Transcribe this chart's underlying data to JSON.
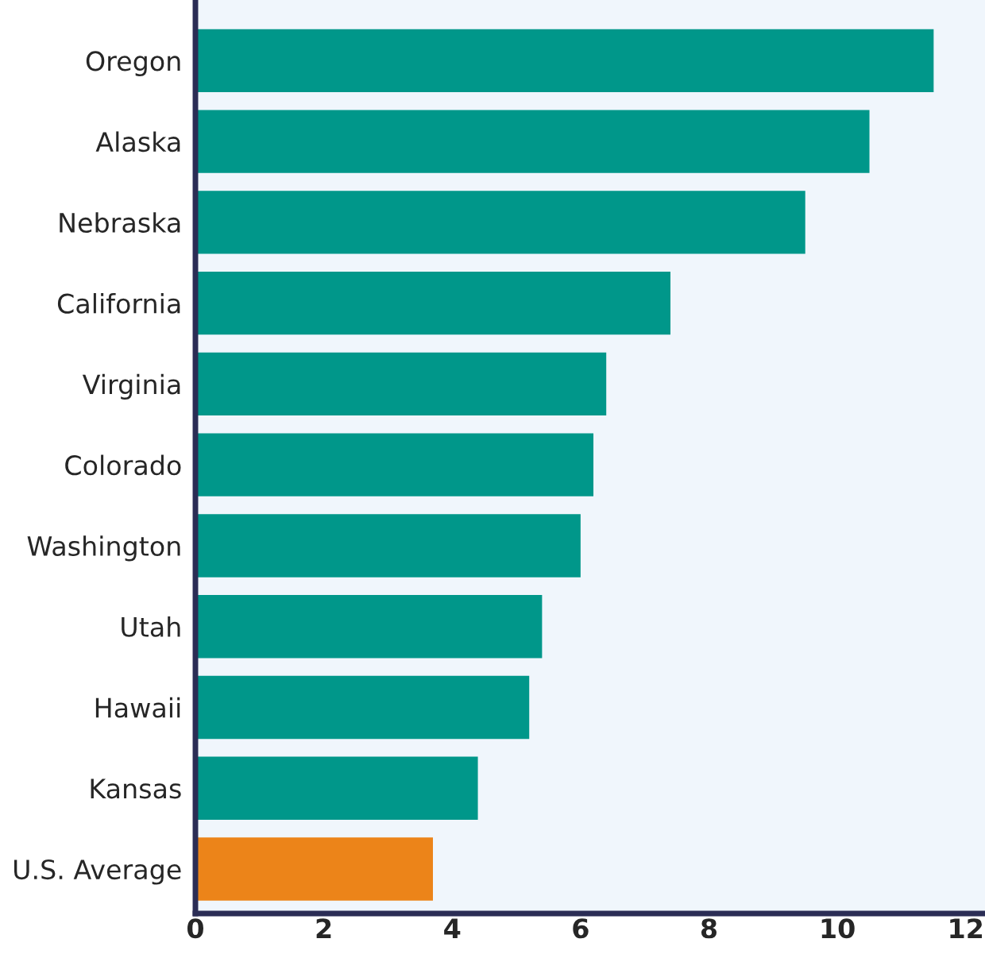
{
  "chart_data": {
    "type": "bar",
    "orientation": "horizontal",
    "categories": [
      "Oregon",
      "Alaska",
      "Nebraska",
      "California",
      "Virginia",
      "Colorado",
      "Washington",
      "Utah",
      "Hawaii",
      "Kansas",
      "U.S. Average"
    ],
    "values": [
      11.5,
      10.5,
      9.5,
      7.4,
      6.4,
      6.2,
      6.0,
      5.4,
      5.2,
      4.4,
      3.7
    ],
    "colors": [
      "#00978a",
      "#00978a",
      "#00978a",
      "#00978a",
      "#00978a",
      "#00978a",
      "#00978a",
      "#00978a",
      "#00978a",
      "#00978a",
      "#ec8419"
    ],
    "xlim": [
      0,
      12.3
    ],
    "xticks": [
      0,
      2,
      4,
      6,
      8,
      10,
      12
    ],
    "grid": false
  }
}
